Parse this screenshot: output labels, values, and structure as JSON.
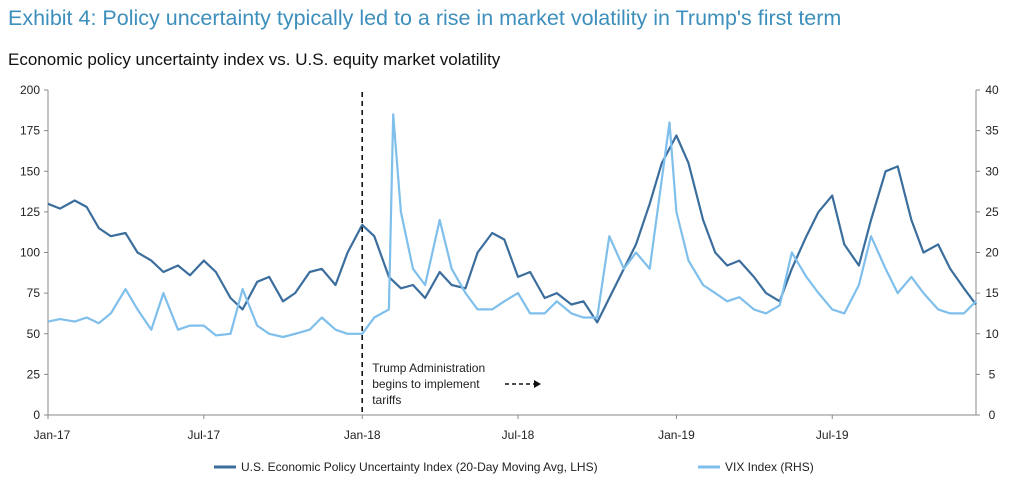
{
  "title": "Exhibit 4: Policy uncertainty typically led to a rise in market volatility in Trump's first term",
  "subtitle": "Economic policy uncertainty index vs. U.S. equity market volatility",
  "colors": {
    "epu": "#3b6e9d",
    "vix": "#7fbfec",
    "title": "#3d8fbd"
  },
  "chart_data": {
    "type": "line",
    "x_ticks": [
      "Jan-17",
      "Jul-17",
      "Jan-18",
      "Jul-18",
      "Jan-19",
      "Jul-19"
    ],
    "x_range": [
      "2017-01-01",
      "2019-12-15"
    ],
    "y_left": {
      "range": [
        0,
        200
      ],
      "ticks": [
        "0",
        "25",
        "50",
        "75",
        "100",
        "125",
        "150",
        "175",
        "200"
      ]
    },
    "y_right": {
      "range": [
        0,
        40
      ],
      "ticks": [
        "0",
        "5",
        "10",
        "15",
        "20",
        "25",
        "30",
        "35",
        "40"
      ]
    },
    "grid": false,
    "legend_position": "bottom",
    "annotation": {
      "date": "2018-01-01",
      "lines": [
        "Trump Administration",
        "begins to implement",
        "tariffs"
      ],
      "style": "dashed vertical line with dashed arrow pointing right"
    },
    "series": [
      {
        "name": "U.S. Economic Policy Uncertainty Index (20-Day Moving Avg, LHS)",
        "axis": "left",
        "points": [
          [
            "2017-01-01",
            130
          ],
          [
            "2017-01-15",
            127
          ],
          [
            "2017-02-01",
            132
          ],
          [
            "2017-02-15",
            128
          ],
          [
            "2017-03-01",
            115
          ],
          [
            "2017-03-15",
            110
          ],
          [
            "2017-04-01",
            112
          ],
          [
            "2017-04-15",
            100
          ],
          [
            "2017-05-01",
            95
          ],
          [
            "2017-05-15",
            88
          ],
          [
            "2017-06-01",
            92
          ],
          [
            "2017-06-15",
            86
          ],
          [
            "2017-07-01",
            95
          ],
          [
            "2017-07-15",
            88
          ],
          [
            "2017-08-01",
            72
          ],
          [
            "2017-08-15",
            65
          ],
          [
            "2017-09-01",
            82
          ],
          [
            "2017-09-15",
            85
          ],
          [
            "2017-10-01",
            70
          ],
          [
            "2017-10-15",
            75
          ],
          [
            "2017-11-01",
            88
          ],
          [
            "2017-11-15",
            90
          ],
          [
            "2017-12-01",
            80
          ],
          [
            "2017-12-15",
            100
          ],
          [
            "2018-01-01",
            117
          ],
          [
            "2018-01-15",
            110
          ],
          [
            "2018-02-01",
            85
          ],
          [
            "2018-02-15",
            78
          ],
          [
            "2018-03-01",
            80
          ],
          [
            "2018-03-15",
            72
          ],
          [
            "2018-04-01",
            88
          ],
          [
            "2018-04-15",
            80
          ],
          [
            "2018-05-01",
            78
          ],
          [
            "2018-05-15",
            100
          ],
          [
            "2018-06-01",
            112
          ],
          [
            "2018-06-15",
            108
          ],
          [
            "2018-07-01",
            85
          ],
          [
            "2018-07-15",
            88
          ],
          [
            "2018-08-01",
            72
          ],
          [
            "2018-08-15",
            75
          ],
          [
            "2018-09-01",
            68
          ],
          [
            "2018-09-15",
            70
          ],
          [
            "2018-10-01",
            57
          ],
          [
            "2018-10-15",
            72
          ],
          [
            "2018-11-01",
            90
          ],
          [
            "2018-11-15",
            105
          ],
          [
            "2018-12-01",
            130
          ],
          [
            "2018-12-15",
            155
          ],
          [
            "2019-01-01",
            172
          ],
          [
            "2019-01-15",
            155
          ],
          [
            "2019-02-01",
            120
          ],
          [
            "2019-02-15",
            100
          ],
          [
            "2019-03-01",
            92
          ],
          [
            "2019-03-15",
            95
          ],
          [
            "2019-04-01",
            85
          ],
          [
            "2019-04-15",
            75
          ],
          [
            "2019-05-01",
            70
          ],
          [
            "2019-05-15",
            90
          ],
          [
            "2019-06-01",
            110
          ],
          [
            "2019-06-15",
            125
          ],
          [
            "2019-07-01",
            135
          ],
          [
            "2019-07-15",
            105
          ],
          [
            "2019-08-01",
            92
          ],
          [
            "2019-08-15",
            120
          ],
          [
            "2019-09-01",
            150
          ],
          [
            "2019-09-15",
            153
          ],
          [
            "2019-10-01",
            120
          ],
          [
            "2019-10-15",
            100
          ],
          [
            "2019-11-01",
            105
          ],
          [
            "2019-11-15",
            90
          ],
          [
            "2019-12-01",
            78
          ],
          [
            "2019-12-15",
            68
          ]
        ]
      },
      {
        "name": "VIX Index (RHS)",
        "axis": "right",
        "points": [
          [
            "2017-01-01",
            11.5
          ],
          [
            "2017-01-15",
            11.8
          ],
          [
            "2017-02-01",
            11.5
          ],
          [
            "2017-02-15",
            12
          ],
          [
            "2017-03-01",
            11.3
          ],
          [
            "2017-03-15",
            12.5
          ],
          [
            "2017-04-01",
            15.5
          ],
          [
            "2017-04-15",
            13
          ],
          [
            "2017-05-01",
            10.5
          ],
          [
            "2017-05-15",
            15
          ],
          [
            "2017-06-01",
            10.5
          ],
          [
            "2017-06-15",
            11
          ],
          [
            "2017-07-01",
            11
          ],
          [
            "2017-07-15",
            9.8
          ],
          [
            "2017-08-01",
            10
          ],
          [
            "2017-08-15",
            15.5
          ],
          [
            "2017-09-01",
            11
          ],
          [
            "2017-09-15",
            10
          ],
          [
            "2017-10-01",
            9.6
          ],
          [
            "2017-10-15",
            10
          ],
          [
            "2017-11-01",
            10.5
          ],
          [
            "2017-11-15",
            12
          ],
          [
            "2017-12-01",
            10.5
          ],
          [
            "2017-12-15",
            10
          ],
          [
            "2018-01-01",
            10
          ],
          [
            "2018-01-15",
            12
          ],
          [
            "2018-02-01",
            13
          ],
          [
            "2018-02-06",
            37
          ],
          [
            "2018-02-15",
            25
          ],
          [
            "2018-03-01",
            18
          ],
          [
            "2018-03-15",
            16
          ],
          [
            "2018-04-01",
            24
          ],
          [
            "2018-04-15",
            18
          ],
          [
            "2018-05-01",
            15
          ],
          [
            "2018-05-15",
            13
          ],
          [
            "2018-06-01",
            13
          ],
          [
            "2018-06-15",
            14
          ],
          [
            "2018-07-01",
            15
          ],
          [
            "2018-07-15",
            12.5
          ],
          [
            "2018-08-01",
            12.5
          ],
          [
            "2018-08-15",
            14
          ],
          [
            "2018-09-01",
            12.5
          ],
          [
            "2018-09-15",
            12
          ],
          [
            "2018-10-01",
            12
          ],
          [
            "2018-10-15",
            22
          ],
          [
            "2018-11-01",
            18
          ],
          [
            "2018-11-15",
            20
          ],
          [
            "2018-12-01",
            18
          ],
          [
            "2018-12-24",
            36
          ],
          [
            "2019-01-01",
            25
          ],
          [
            "2019-01-15",
            19
          ],
          [
            "2019-02-01",
            16
          ],
          [
            "2019-02-15",
            15
          ],
          [
            "2019-03-01",
            14
          ],
          [
            "2019-03-15",
            14.5
          ],
          [
            "2019-04-01",
            13
          ],
          [
            "2019-04-15",
            12.5
          ],
          [
            "2019-05-01",
            13.5
          ],
          [
            "2019-05-15",
            20
          ],
          [
            "2019-06-01",
            17
          ],
          [
            "2019-06-15",
            15
          ],
          [
            "2019-07-01",
            13
          ],
          [
            "2019-07-15",
            12.5
          ],
          [
            "2019-08-01",
            16
          ],
          [
            "2019-08-15",
            22
          ],
          [
            "2019-09-01",
            18
          ],
          [
            "2019-09-15",
            15
          ],
          [
            "2019-10-01",
            17
          ],
          [
            "2019-10-15",
            15
          ],
          [
            "2019-11-01",
            13
          ],
          [
            "2019-11-15",
            12.5
          ],
          [
            "2019-12-01",
            12.5
          ],
          [
            "2019-12-15",
            14
          ]
        ]
      }
    ]
  }
}
